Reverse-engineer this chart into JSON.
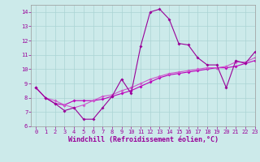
{
  "title": "",
  "xlabel": "Windchill (Refroidissement éolien,°C)",
  "ylabel": "",
  "xlim": [
    -0.5,
    23
  ],
  "ylim": [
    6,
    14.5
  ],
  "xticks": [
    0,
    1,
    2,
    3,
    4,
    5,
    6,
    7,
    8,
    9,
    10,
    11,
    12,
    13,
    14,
    15,
    16,
    17,
    18,
    19,
    20,
    21,
    22,
    23
  ],
  "yticks": [
    6,
    7,
    8,
    9,
    10,
    11,
    12,
    13,
    14
  ],
  "bg_color": "#cceaea",
  "grid_color": "#aad4d4",
  "line_color": "#990099",
  "line_color2": "#bb00bb",
  "line_color3": "#cc55cc",
  "line1_x": [
    0,
    1,
    2,
    3,
    4,
    5,
    6,
    7,
    8,
    9,
    10,
    11,
    12,
    13,
    14,
    15,
    16,
    17,
    18,
    19,
    20,
    21,
    22,
    23
  ],
  "line1_y": [
    8.7,
    8.0,
    7.6,
    7.1,
    7.3,
    6.5,
    6.5,
    7.3,
    8.1,
    9.3,
    8.3,
    11.6,
    14.0,
    14.2,
    13.5,
    11.8,
    11.7,
    10.8,
    10.3,
    10.3,
    8.7,
    10.6,
    10.4,
    11.2
  ],
  "line2_x": [
    0,
    1,
    2,
    3,
    4,
    5,
    6,
    7,
    8,
    9,
    10,
    11,
    12,
    13,
    14,
    15,
    16,
    17,
    18,
    19,
    20,
    21,
    22,
    23
  ],
  "line2_y": [
    8.7,
    8.0,
    7.6,
    7.5,
    7.8,
    7.8,
    7.8,
    7.9,
    8.1,
    8.3,
    8.5,
    8.8,
    9.1,
    9.4,
    9.6,
    9.7,
    9.8,
    9.9,
    10.0,
    10.1,
    10.1,
    10.2,
    10.4,
    10.6
  ],
  "line3_x": [
    0,
    1,
    2,
    3,
    4,
    5,
    6,
    7,
    8,
    9,
    10,
    11,
    12,
    13,
    14,
    15,
    16,
    17,
    18,
    19,
    20,
    21,
    22,
    23
  ],
  "line3_y": [
    8.7,
    8.0,
    7.8,
    7.5,
    7.3,
    7.5,
    7.8,
    8.1,
    8.2,
    8.5,
    8.7,
    9.0,
    9.3,
    9.5,
    9.7,
    9.8,
    9.9,
    10.0,
    10.1,
    10.1,
    10.2,
    10.5,
    10.5,
    10.8
  ],
  "marker": "D",
  "markersize": 2.0,
  "linewidth": 0.8,
  "tick_fontsize": 5.0,
  "label_fontsize": 6.0
}
